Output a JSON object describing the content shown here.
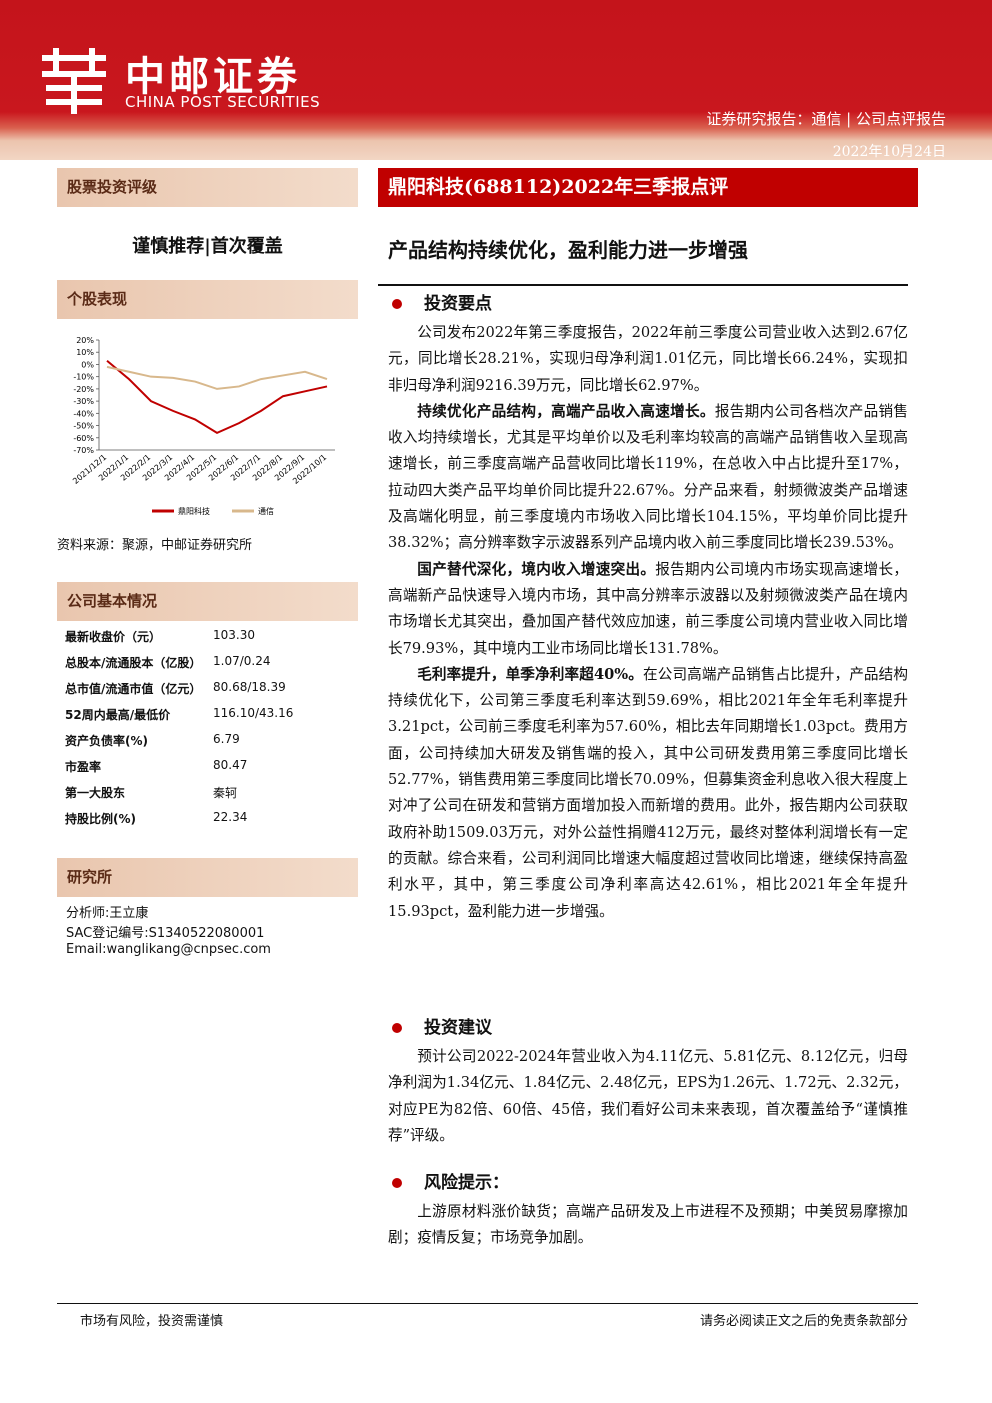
{
  "header": {
    "brand": "中邮证券",
    "brand_en": "CHINA POST SECURITIES",
    "report_type": "证券研究报告：通信 | 公司点评报告",
    "date": "2022年10月24日"
  },
  "sidebar": {
    "rating_label": "股票投资评级",
    "rating": "谨慎推荐|首次覆盖",
    "performance_label": "个股表现",
    "source": "资料来源：聚源，中邮证券研究所",
    "basic_info_label": "公司基本情况",
    "basic_info": [
      [
        "最新收盘价（元）",
        "103.30"
      ],
      [
        "总股本/流通股本（亿股）",
        "1.07/0.24"
      ],
      [
        "总市值/流通市值（亿元）",
        "80.68/18.39"
      ],
      [
        "52周内最高/最低价",
        "116.10/43.16"
      ],
      [
        "资产负债率(%)",
        "6.79"
      ],
      [
        "市盈率",
        "80.47"
      ],
      [
        "第一大股东",
        "秦轲"
      ],
      [
        "持股比例(%)",
        "22.34"
      ]
    ],
    "research_label": "研究所",
    "analyst": [
      "分析师:王立康",
      "SAC登记编号:S1340522080001",
      "Email:wanglikang@cnpsec.com"
    ]
  },
  "chart_data": {
    "type": "line",
    "categories": [
      "2021/12/1",
      "2022/1/1",
      "2022/2/1",
      "2022/3/1",
      "2022/4/1",
      "2022/5/1",
      "2022/6/1",
      "2022/7/1",
      "2022/8/1",
      "2022/9/1",
      "2022/10/1"
    ],
    "series": [
      {
        "name": "鼎阳科技",
        "color": "#c00000",
        "values": [
          3,
          -12,
          -30,
          -38,
          -45,
          -56,
          -48,
          -38,
          -26,
          -22,
          -18
        ]
      },
      {
        "name": "通信",
        "color": "#d8b88c",
        "values": [
          -2,
          -6,
          -10,
          -11,
          -14,
          -20,
          -18,
          -12,
          -9,
          -6,
          -12
        ]
      }
    ],
    "ylim": [
      -70,
      20
    ],
    "yticks": [
      {
        "value": 20,
        "label": "20%"
      },
      {
        "value": 10,
        "label": "10%"
      },
      {
        "value": 0,
        "label": "0%"
      },
      {
        "value": -10,
        "label": "-10%"
      },
      {
        "value": -20,
        "label": "-20%"
      },
      {
        "value": -30,
        "label": "-30%"
      },
      {
        "value": -40,
        "label": "-40%"
      },
      {
        "value": -50,
        "label": "-50%"
      },
      {
        "value": -60,
        "label": "-60%"
      },
      {
        "value": -70,
        "label": "-70%"
      }
    ]
  },
  "main": {
    "title": "鼎阳科技(688112)2022年三季报点评",
    "headline": "产品结构持续优化，盈利能力进一步增强",
    "sections": [
      {
        "heading": "投资要点",
        "paragraphs": [
          {
            "text": "公司发布2022年第三季度报告，2022年前三季度公司营业收入达到2.67亿元，同比增长28.21%，实现归母净利润1.01亿元，同比增长66.24%，实现扣非归母净利润9216.39万元，同比增长62.97%。"
          },
          {
            "lead": "持续优化产品结构，高端产品收入高速增长。",
            "text": "报告期内公司各档次产品销售收入均持续增长，尤其是平均单价以及毛利率均较高的高端产品销售收入呈现高速增长，前三季度高端产品营收同比增长119%，在总收入中占比提升至17%，拉动四大类产品平均单价同比提升22.67%。分产品来看，射频微波类产品增速及高端化明显，前三季度境内市场收入同比增长104.15%，平均单价同比提升38.32%；高分辨率数字示波器系列产品境内收入前三季度同比增长239.53%。"
          },
          {
            "lead": "国产替代深化，境内收入增速突出。",
            "text": "报告期内公司境内市场实现高速增长，高端新产品快速导入境内市场，其中高分辨率示波器以及射频微波类产品在境内市场增长尤其突出，叠加国产替代效应加速，前三季度公司境内营业收入同比增长79.93%，其中境内工业市场同比增长131.78%。"
          },
          {
            "lead": "毛利率提升，单季净利率超40%。",
            "text": "在公司高端产品销售占比提升，产品结构持续优化下，公司第三季度毛利率达到59.69%，相比2021年全年毛利率提升3.21pct，公司前三季度毛利率为57.60%，相比去年同期增长1.03pct。费用方面，公司持续加大研发及销售端的投入，其中公司研发费用第三季度同比增长52.77%，销售费用第三季度同比增长70.09%，但募集资金利息收入很大程度上对冲了公司在研发和营销方面增加投入而新增的费用。此外，报告期内公司获取政府补助1509.03万元，对外公益性捐赠412万元，最终对整体利润增长有一定的贡献。综合来看，公司利润同比增速大幅度超过营收同比增速，继续保持高盈利水平，其中，第三季度公司净利率高达42.61%，相比2021年全年提升15.93pct，盈利能力进一步增强。"
          }
        ]
      },
      {
        "heading": "投资建议",
        "paragraphs": [
          {
            "text": "预计公司2022-2024年营业收入为4.11亿元、5.81亿元、8.12亿元，归母净利润为1.34亿元、1.84亿元、2.48亿元，EPS为1.26元、1.72元、2.32元，对应PE为82倍、60倍、45倍，我们看好公司未来表现，首次覆盖给予“谨慎推荐”评级。"
          }
        ]
      },
      {
        "heading": "风险提示：",
        "paragraphs": [
          {
            "text": "上游原材料涨价缺货；高端产品研发及上市进程不及预期；中美贸易摩擦加剧；疫情反复；市场竞争加剧。"
          }
        ]
      }
    ]
  },
  "footer": {
    "left": "市场有风险，投资需谨慎",
    "right": "请务必阅读正文之后的免责条款部分"
  }
}
